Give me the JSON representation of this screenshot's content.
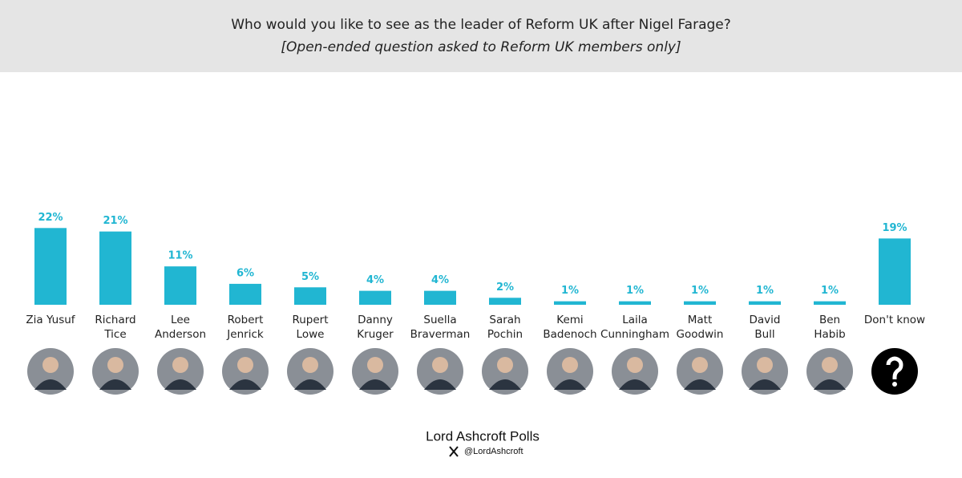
{
  "chart_data": {
    "type": "bar",
    "title": "Who would you like to see as the leader of Reform UK after Nigel Farage?",
    "subtitle": "[Open-ended question asked to Reform UK members only]",
    "categories": [
      [
        "Zia Yusuf"
      ],
      [
        "Richard",
        "Tice"
      ],
      [
        "Lee",
        "Anderson"
      ],
      [
        "Robert",
        "Jenrick"
      ],
      [
        "Rupert",
        "Lowe"
      ],
      [
        "Danny",
        "Kruger"
      ],
      [
        "Suella",
        "Braverman"
      ],
      [
        "Sarah",
        "Pochin"
      ],
      [
        "Kemi",
        "Badenoch"
      ],
      [
        "Laila",
        "Cunningham"
      ],
      [
        "Matt",
        "Goodwin"
      ],
      [
        "David",
        "Bull"
      ],
      [
        "Ben",
        "Habib"
      ],
      [
        "Don't know"
      ]
    ],
    "values": [
      22,
      21,
      11,
      6,
      5,
      4,
      4,
      2,
      1,
      1,
      1,
      1,
      1,
      19
    ],
    "value_labels": [
      "22%",
      "21%",
      "11%",
      "6%",
      "5%",
      "4%",
      "4%",
      "2%",
      "1%",
      "1%",
      "1%",
      "1%",
      "1%",
      "19%"
    ],
    "color": "#21b6d2",
    "source": "Lord Ashcroft Polls",
    "handle": "@LordAshcroft"
  }
}
